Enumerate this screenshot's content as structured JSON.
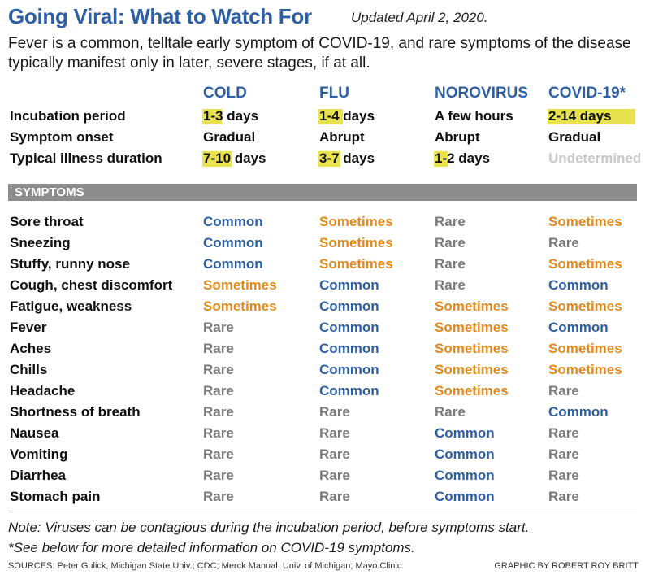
{
  "title": "Going Viral: What to Watch For",
  "updated": "Updated April 2, 2020.",
  "intro": "Fever is a common, telltale early symptom of COVID-19, and rare symptoms of the disease typically manifest only in later, severe stages, if at all.",
  "columns": [
    "COLD",
    "FLU",
    "NOROVIRUS",
    "COVID-19*"
  ],
  "characteristics": [
    {
      "label": "Incubation period",
      "values": [
        "1-3 days",
        "1-4 days",
        "A few hours",
        "2-14 days"
      ],
      "highlight_days": [
        [
          1,
          3
        ],
        [
          1,
          4
        ],
        null,
        [
          2,
          14
        ]
      ]
    },
    {
      "label": "Symptom onset",
      "values": [
        "Gradual",
        "Abrupt",
        "Abrupt",
        "Gradual"
      ],
      "highlight_days": [
        null,
        null,
        null,
        null
      ]
    },
    {
      "label": "Typical illness duration",
      "values": [
        "7-10 days",
        "3-7 days",
        "1-2 days",
        "Undetermined"
      ],
      "highlight_days": [
        [
          7,
          10
        ],
        [
          3,
          7
        ],
        [
          1,
          2
        ],
        null
      ]
    }
  ],
  "symptoms_header": "SYMPTOMS",
  "symptoms": [
    {
      "label": "Sore throat",
      "values": [
        "Common",
        "Sometimes",
        "Rare",
        "Sometimes"
      ]
    },
    {
      "label": "Sneezing",
      "values": [
        "Common",
        "Sometimes",
        "Rare",
        "Rare"
      ]
    },
    {
      "label": "Stuffy, runny nose",
      "values": [
        "Common",
        "Sometimes",
        "Rare",
        "Sometimes"
      ]
    },
    {
      "label": "Cough, chest discomfort",
      "values": [
        "Sometimes",
        "Common",
        "Rare",
        "Common"
      ]
    },
    {
      "label": "Fatigue, weakness",
      "values": [
        "Sometimes",
        "Common",
        "Sometimes",
        "Sometimes"
      ]
    },
    {
      "label": "Fever",
      "values": [
        "Rare",
        "Common",
        "Sometimes",
        "Common"
      ]
    },
    {
      "label": "Aches",
      "values": [
        "Rare",
        "Common",
        "Sometimes",
        "Sometimes"
      ]
    },
    {
      "label": "Chills",
      "values": [
        "Rare",
        "Common",
        "Sometimes",
        "Sometimes"
      ]
    },
    {
      "label": "Headache",
      "values": [
        "Rare",
        "Common",
        "Sometimes",
        "Rare"
      ]
    },
    {
      "label": "Shortness of breath",
      "values": [
        "Rare",
        "Rare",
        "Rare",
        "Common"
      ]
    },
    {
      "label": "Nausea",
      "values": [
        "Rare",
        "Rare",
        "Common",
        "Rare"
      ]
    },
    {
      "label": "Vomiting",
      "values": [
        "Rare",
        "Rare",
        "Common",
        "Rare"
      ]
    },
    {
      "label": "Diarrhea",
      "values": [
        "Rare",
        "Rare",
        "Common",
        "Rare"
      ]
    },
    {
      "label": "Stomach pain",
      "values": [
        "Rare",
        "Rare",
        "Common",
        "Rare"
      ]
    }
  ],
  "level_colors": {
    "Common": "#2f5fa3",
    "Sometimes": "#e08a1e",
    "Rare": "#7a7a7a"
  },
  "highlight_color": "#e9e24f",
  "notes": [
    "Note: Viruses can be contagious during the incubation period, before symptoms start.",
    "*See below for more detailed information on COVID-19 symptoms."
  ],
  "sources": "SOURCES: Peter Gulick, Michigan State Univ.; CDC; Merck Manual; Univ. of Michigan; Mayo Clinic",
  "credit": "GRAPHIC BY ROBERT ROY BRITT"
}
